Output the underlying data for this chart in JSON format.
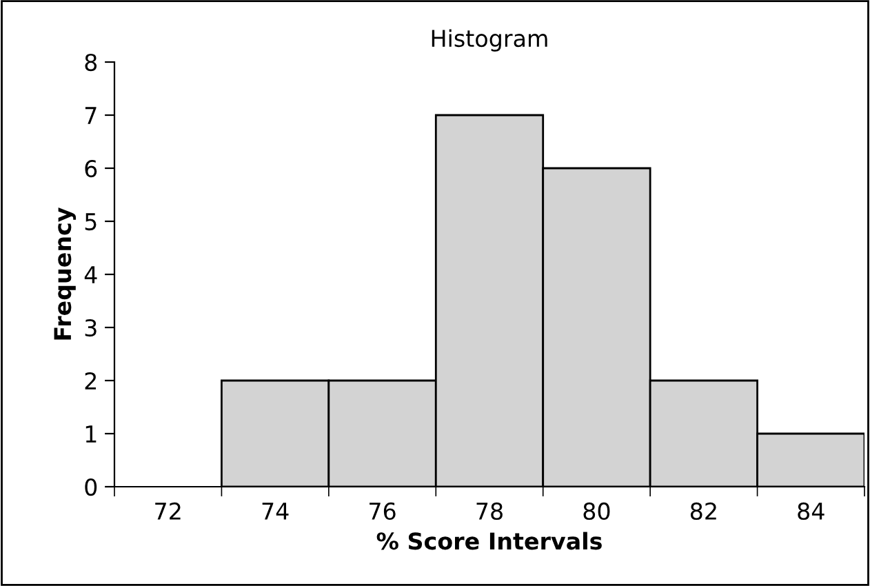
{
  "chart_data": {
    "type": "bar",
    "title": "Histogram",
    "xlabel": "% Score Intervals",
    "ylabel": "Frequency",
    "categories": [
      "72",
      "74",
      "76",
      "78",
      "80",
      "82",
      "84"
    ],
    "values": [
      0,
      2,
      2,
      7,
      6,
      2,
      1
    ],
    "color": "#d3d3d3",
    "ylim": [
      0,
      8
    ],
    "yticks": [
      0,
      1,
      2,
      3,
      4,
      5,
      6,
      7,
      8
    ],
    "grid": false,
    "legend": false
  }
}
